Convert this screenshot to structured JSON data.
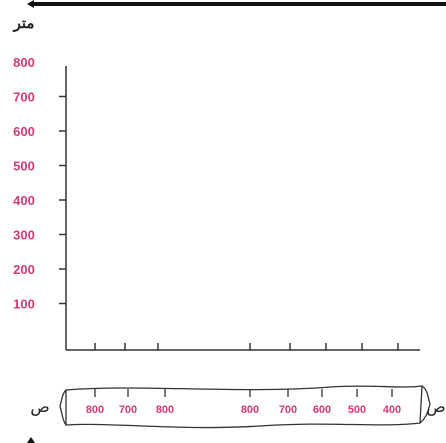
{
  "chart_data": {
    "type": "line",
    "ylabel": "متر",
    "y_ticks": [
      "800",
      "700",
      "600",
      "500",
      "400",
      "300",
      "200",
      "100"
    ],
    "x_ticks_left": [
      "800",
      "700",
      "800"
    ],
    "x_ticks_right": [
      "800",
      "700",
      "600",
      "500",
      "400"
    ],
    "x_label_left": "ص",
    "x_label_right": "ص",
    "ylim": [
      0,
      800
    ],
    "grid": false,
    "series": []
  },
  "colors": {
    "tick_label": "#d43a78",
    "axis": "#333333",
    "label": "#222222"
  }
}
